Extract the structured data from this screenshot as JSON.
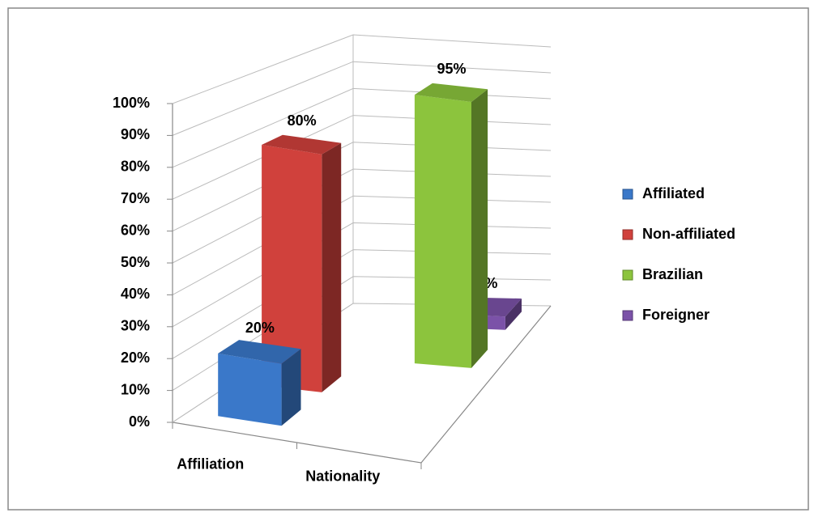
{
  "chart_data": {
    "type": "bar3d",
    "categories": [
      "Affiliation",
      "Nationality"
    ],
    "series": [
      {
        "name": "Affiliated",
        "color": "#3a78c9",
        "values": [
          20,
          null
        ],
        "value_labels": [
          "20%",
          null
        ]
      },
      {
        "name": "Non-affiliated",
        "color": "#d0413c",
        "values": [
          80,
          null
        ],
        "value_labels": [
          "80%",
          null
        ]
      },
      {
        "name": "Brazilian",
        "color": "#8cc43d",
        "values": [
          null,
          95
        ],
        "value_labels": [
          null,
          "95%"
        ]
      },
      {
        "name": "Foreigner",
        "color": "#7b52a8",
        "values": [
          null,
          5
        ],
        "value_labels": [
          null,
          "5%"
        ]
      }
    ],
    "ylim": [
      0,
      100
    ],
    "yticks": [
      {
        "value": 0,
        "label": "0%"
      },
      {
        "value": 10,
        "label": "10%"
      },
      {
        "value": 20,
        "label": "20%"
      },
      {
        "value": 30,
        "label": "30%"
      },
      {
        "value": 40,
        "label": "40%"
      },
      {
        "value": 50,
        "label": "50%"
      },
      {
        "value": 60,
        "label": "60%"
      },
      {
        "value": 70,
        "label": "70%"
      },
      {
        "value": 80,
        "label": "80%"
      },
      {
        "value": 90,
        "label": "90%"
      },
      {
        "value": 100,
        "label": "100%"
      }
    ],
    "grid": true,
    "legend": "right"
  }
}
